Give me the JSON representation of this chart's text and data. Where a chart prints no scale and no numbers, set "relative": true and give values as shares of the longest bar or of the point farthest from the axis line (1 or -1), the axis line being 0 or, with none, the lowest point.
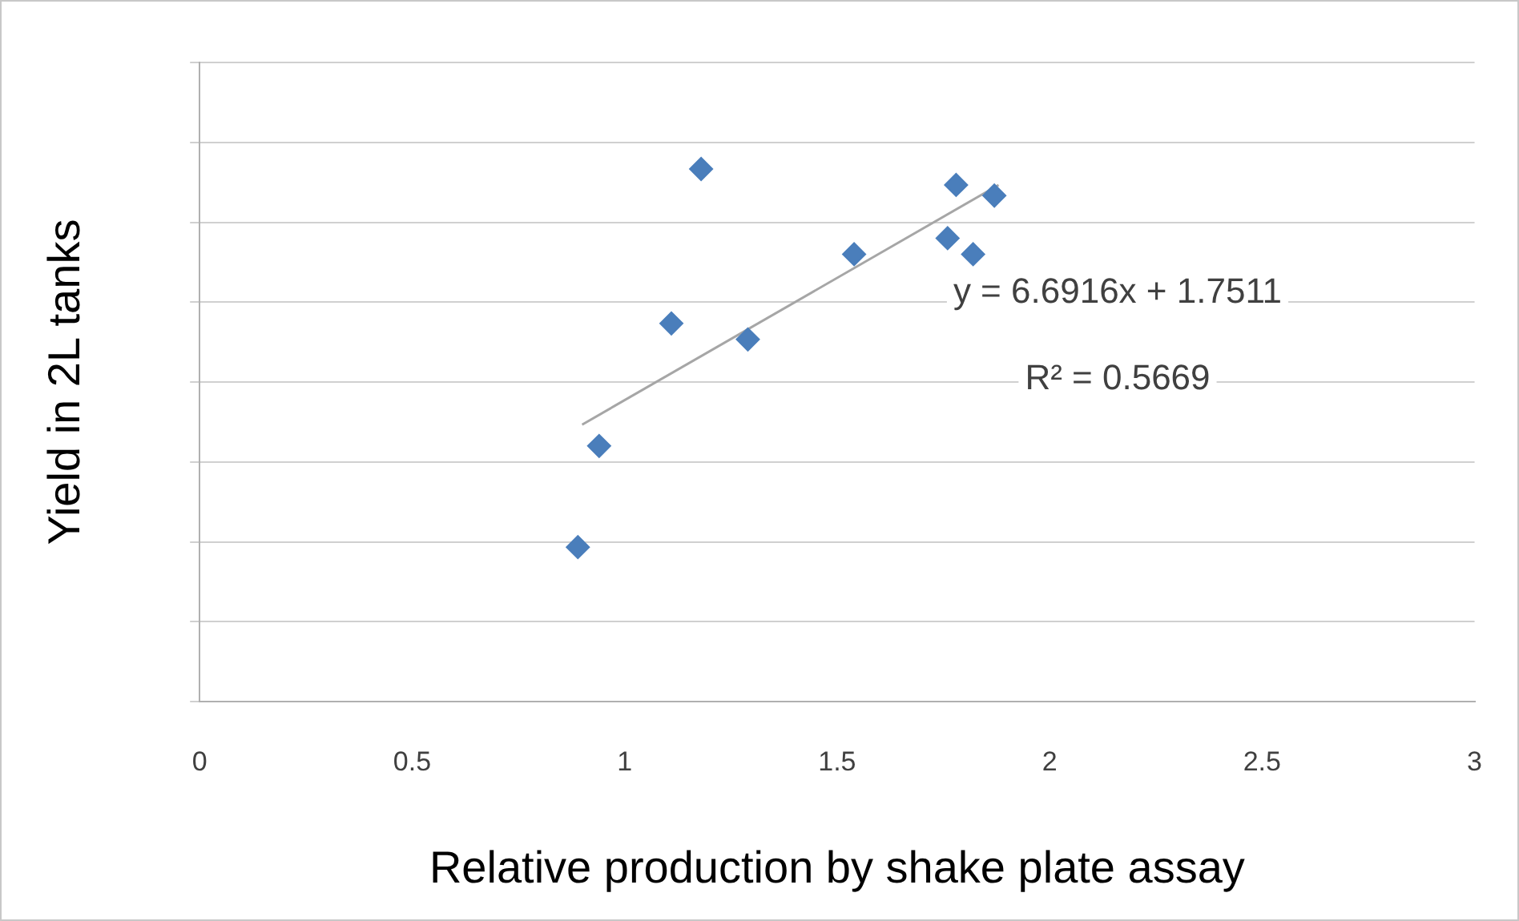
{
  "chart_data": {
    "type": "scatter",
    "xlabel": "Relative production by shake plate assay",
    "ylabel": "Yield in 2L tanks",
    "relative": true,
    "xlim": [
      0,
      3
    ],
    "xticks": [
      0,
      0.5,
      1,
      1.5,
      2,
      2.5,
      3
    ],
    "grid": "y",
    "series": [
      {
        "color": "#4a7ebb",
        "marker": "diamond",
        "x": [
          0.89,
          0.94,
          1.11,
          1.18,
          1.29,
          1.54,
          1.76,
          1.78,
          1.82,
          1.87
        ],
        "values": [
          0.29,
          0.48,
          0.71,
          1,
          0.68,
          0.84,
          0.87,
          0.97,
          0.84,
          0.95
        ]
      },
      {
        "type": "line",
        "color": "#a6a6a6",
        "marker": "none",
        "x": [
          0.9,
          1.88
        ],
        "values": [
          0.52,
          0.97
        ]
      }
    ],
    "annotations": [
      "y = 6.6916x + 1.7511",
      "R² = 0.5669"
    ]
  }
}
